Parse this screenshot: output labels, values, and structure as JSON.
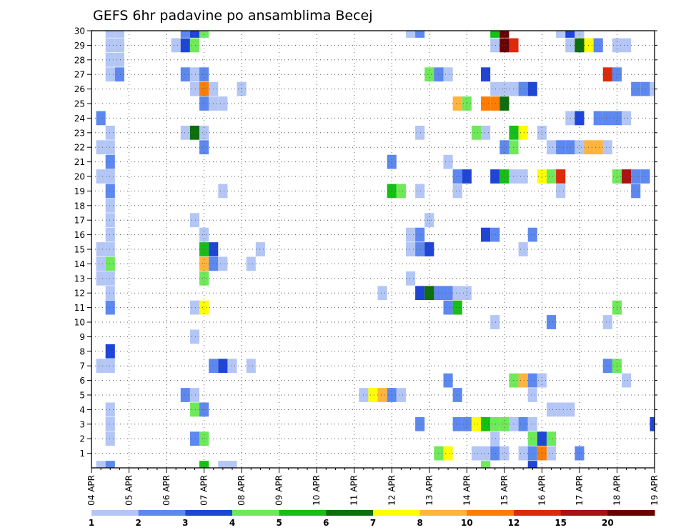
{
  "chart_data": {
    "type": "heatmap",
    "title": "GEFS 6hr padavine po ansamblima Becej",
    "xlabel": "",
    "ylabel": "",
    "x_ticks": [
      "04 APR",
      "05 APR",
      "06 APR",
      "07 APR",
      "08 APR",
      "09 APR",
      "10 APR",
      "11 APR",
      "12 APR",
      "13 APR",
      "14 APR",
      "15 APR",
      "16 APR",
      "17 APR",
      "18 APR",
      "19 APR"
    ],
    "y_ticks": [
      "1",
      "2",
      "3",
      "4",
      "5",
      "6",
      "7",
      "8",
      "9",
      "10",
      "11",
      "12",
      "13",
      "14",
      "15",
      "16",
      "17",
      "18",
      "19",
      "20",
      "21",
      "22",
      "23",
      "24",
      "25",
      "26",
      "27",
      "28",
      "29",
      "30"
    ],
    "xlim": [
      0,
      15
    ],
    "ylim": [
      0,
      30
    ],
    "grid": true,
    "colorbar": {
      "position": "bottom",
      "labels": [
        "1",
        "2",
        "3",
        "4",
        "5",
        "6",
        "7",
        "8",
        "10",
        "12",
        "15",
        "20"
      ],
      "colors": [
        "#b3c6f5",
        "#5d88ef",
        "#1f45d6",
        "#6fe95a",
        "#16bf16",
        "#0e6e0e",
        "#ffff00",
        "#ffb43c",
        "#ff7d00",
        "#dc2a0a",
        "#a81414",
        "#6b0000"
      ]
    },
    "cells_note_units": "x = days since 04 APR (6-hour steps), y = ensemble member, v = precipitation class index",
    "cells": [
      {
        "x": 0.5,
        "y": 30,
        "v": 1
      },
      {
        "x": 0.75,
        "y": 30,
        "v": 1
      },
      {
        "x": 2.5,
        "y": 30,
        "v": 2
      },
      {
        "x": 2.75,
        "y": 30,
        "v": 3
      },
      {
        "x": 3.0,
        "y": 30,
        "v": 4
      },
      {
        "x": 8.5,
        "y": 30,
        "v": 1
      },
      {
        "x": 8.75,
        "y": 30,
        "v": 2
      },
      {
        "x": 10.75,
        "y": 30,
        "v": 5
      },
      {
        "x": 11.0,
        "y": 30,
        "v": 12
      },
      {
        "x": 12.5,
        "y": 30,
        "v": 1
      },
      {
        "x": 12.75,
        "y": 30,
        "v": 3
      },
      {
        "x": 13.0,
        "y": 30,
        "v": 1
      },
      {
        "x": 0.5,
        "y": 29,
        "v": 1
      },
      {
        "x": 0.75,
        "y": 29,
        "v": 1
      },
      {
        "x": 2.25,
        "y": 29,
        "v": 1
      },
      {
        "x": 2.5,
        "y": 29,
        "v": 3
      },
      {
        "x": 2.75,
        "y": 29,
        "v": 4
      },
      {
        "x": 10.75,
        "y": 29,
        "v": 1
      },
      {
        "x": 11.0,
        "y": 29,
        "v": 12
      },
      {
        "x": 11.25,
        "y": 29,
        "v": 10
      },
      {
        "x": 12.75,
        "y": 29,
        "v": 1
      },
      {
        "x": 13.0,
        "y": 29,
        "v": 6
      },
      {
        "x": 13.25,
        "y": 29,
        "v": 7
      },
      {
        "x": 13.5,
        "y": 29,
        "v": 2
      },
      {
        "x": 14.0,
        "y": 29,
        "v": 1
      },
      {
        "x": 14.25,
        "y": 29,
        "v": 1
      },
      {
        "x": 0.5,
        "y": 28,
        "v": 1
      },
      {
        "x": 0.75,
        "y": 28,
        "v": 1
      },
      {
        "x": 0.5,
        "y": 27,
        "v": 1
      },
      {
        "x": 0.75,
        "y": 27,
        "v": 2
      },
      {
        "x": 2.5,
        "y": 27,
        "v": 2
      },
      {
        "x": 2.75,
        "y": 27,
        "v": 1
      },
      {
        "x": 3.0,
        "y": 27,
        "v": 2
      },
      {
        "x": 9.0,
        "y": 27,
        "v": 4
      },
      {
        "x": 9.25,
        "y": 27,
        "v": 2
      },
      {
        "x": 9.5,
        "y": 27,
        "v": 1
      },
      {
        "x": 10.5,
        "y": 27,
        "v": 3
      },
      {
        "x": 13.75,
        "y": 27,
        "v": 10
      },
      {
        "x": 14.0,
        "y": 27,
        "v": 2
      },
      {
        "x": 2.75,
        "y": 26,
        "v": 1
      },
      {
        "x": 3.0,
        "y": 26,
        "v": 9
      },
      {
        "x": 3.25,
        "y": 26,
        "v": 1
      },
      {
        "x": 4.0,
        "y": 26,
        "v": 1
      },
      {
        "x": 10.75,
        "y": 26,
        "v": 1
      },
      {
        "x": 11.0,
        "y": 26,
        "v": 1
      },
      {
        "x": 11.25,
        "y": 26,
        "v": 1
      },
      {
        "x": 11.5,
        "y": 26,
        "v": 2
      },
      {
        "x": 11.75,
        "y": 26,
        "v": 3
      },
      {
        "x": 14.5,
        "y": 26,
        "v": 2
      },
      {
        "x": 14.75,
        "y": 26,
        "v": 2
      },
      {
        "x": 15.0,
        "y": 26,
        "v": 1
      },
      {
        "x": 15.25,
        "y": 26,
        "v": 6
      },
      {
        "x": 3.0,
        "y": 25,
        "v": 2
      },
      {
        "x": 3.25,
        "y": 25,
        "v": 1
      },
      {
        "x": 3.5,
        "y": 25,
        "v": 1
      },
      {
        "x": 9.75,
        "y": 25,
        "v": 8
      },
      {
        "x": 10.0,
        "y": 25,
        "v": 4
      },
      {
        "x": 10.5,
        "y": 25,
        "v": 9
      },
      {
        "x": 10.75,
        "y": 25,
        "v": 9
      },
      {
        "x": 11.0,
        "y": 25,
        "v": 6
      },
      {
        "x": 0.25,
        "y": 24,
        "v": 2
      },
      {
        "x": 12.75,
        "y": 24,
        "v": 1
      },
      {
        "x": 13.0,
        "y": 24,
        "v": 3
      },
      {
        "x": 13.5,
        "y": 24,
        "v": 2
      },
      {
        "x": 13.75,
        "y": 24,
        "v": 2
      },
      {
        "x": 14.0,
        "y": 24,
        "v": 2
      },
      {
        "x": 14.25,
        "y": 24,
        "v": 1
      },
      {
        "x": 0.5,
        "y": 23,
        "v": 1
      },
      {
        "x": 2.5,
        "y": 23,
        "v": 1
      },
      {
        "x": 2.75,
        "y": 23,
        "v": 6
      },
      {
        "x": 3.0,
        "y": 23,
        "v": 1
      },
      {
        "x": 8.75,
        "y": 23,
        "v": 1
      },
      {
        "x": 10.25,
        "y": 23,
        "v": 4
      },
      {
        "x": 10.5,
        "y": 23,
        "v": 1
      },
      {
        "x": 11.25,
        "y": 23,
        "v": 5
      },
      {
        "x": 11.5,
        "y": 23,
        "v": 7
      },
      {
        "x": 12.0,
        "y": 23,
        "v": 1
      },
      {
        "x": 0.25,
        "y": 22,
        "v": 1
      },
      {
        "x": 0.5,
        "y": 22,
        "v": 1
      },
      {
        "x": 3.0,
        "y": 22,
        "v": 2
      },
      {
        "x": 11.0,
        "y": 22,
        "v": 2
      },
      {
        "x": 11.25,
        "y": 22,
        "v": 4
      },
      {
        "x": 12.25,
        "y": 22,
        "v": 1
      },
      {
        "x": 12.5,
        "y": 22,
        "v": 2
      },
      {
        "x": 12.75,
        "y": 22,
        "v": 2
      },
      {
        "x": 13.0,
        "y": 22,
        "v": 1
      },
      {
        "x": 13.25,
        "y": 22,
        "v": 8
      },
      {
        "x": 13.5,
        "y": 22,
        "v": 8
      },
      {
        "x": 13.75,
        "y": 22,
        "v": 1
      },
      {
        "x": 0.5,
        "y": 21,
        "v": 2
      },
      {
        "x": 8.0,
        "y": 21,
        "v": 2
      },
      {
        "x": 9.5,
        "y": 21,
        "v": 1
      },
      {
        "x": 0.25,
        "y": 20,
        "v": 1
      },
      {
        "x": 0.5,
        "y": 20,
        "v": 1
      },
      {
        "x": 9.75,
        "y": 20,
        "v": 2
      },
      {
        "x": 10.0,
        "y": 20,
        "v": 3
      },
      {
        "x": 10.75,
        "y": 20,
        "v": 3
      },
      {
        "x": 11.0,
        "y": 20,
        "v": 5
      },
      {
        "x": 11.25,
        "y": 20,
        "v": 1
      },
      {
        "x": 11.5,
        "y": 20,
        "v": 1
      },
      {
        "x": 12.0,
        "y": 20,
        "v": 7
      },
      {
        "x": 12.25,
        "y": 20,
        "v": 4
      },
      {
        "x": 12.5,
        "y": 20,
        "v": 10
      },
      {
        "x": 14.0,
        "y": 20,
        "v": 4
      },
      {
        "x": 14.25,
        "y": 20,
        "v": 11
      },
      {
        "x": 14.5,
        "y": 20,
        "v": 2
      },
      {
        "x": 14.75,
        "y": 20,
        "v": 2
      },
      {
        "x": 0.5,
        "y": 19,
        "v": 2
      },
      {
        "x": 3.5,
        "y": 19,
        "v": 1
      },
      {
        "x": 8.0,
        "y": 19,
        "v": 5
      },
      {
        "x": 8.25,
        "y": 19,
        "v": 4
      },
      {
        "x": 8.75,
        "y": 19,
        "v": 1
      },
      {
        "x": 9.75,
        "y": 19,
        "v": 1
      },
      {
        "x": 12.5,
        "y": 19,
        "v": 1
      },
      {
        "x": 14.5,
        "y": 19,
        "v": 2
      },
      {
        "x": 0.5,
        "y": 18,
        "v": 1
      },
      {
        "x": 0.5,
        "y": 17,
        "v": 1
      },
      {
        "x": 2.75,
        "y": 17,
        "v": 1
      },
      {
        "x": 9.0,
        "y": 17,
        "v": 1
      },
      {
        "x": 0.5,
        "y": 16,
        "v": 1
      },
      {
        "x": 3.0,
        "y": 16,
        "v": 1
      },
      {
        "x": 8.5,
        "y": 16,
        "v": 1
      },
      {
        "x": 8.75,
        "y": 16,
        "v": 2
      },
      {
        "x": 10.5,
        "y": 16,
        "v": 3
      },
      {
        "x": 10.75,
        "y": 16,
        "v": 2
      },
      {
        "x": 11.75,
        "y": 16,
        "v": 2
      },
      {
        "x": 0.25,
        "y": 15,
        "v": 1
      },
      {
        "x": 0.5,
        "y": 15,
        "v": 1
      },
      {
        "x": 3.0,
        "y": 15,
        "v": 5
      },
      {
        "x": 3.25,
        "y": 15,
        "v": 3
      },
      {
        "x": 4.5,
        "y": 15,
        "v": 1
      },
      {
        "x": 8.5,
        "y": 15,
        "v": 1
      },
      {
        "x": 8.75,
        "y": 15,
        "v": 2
      },
      {
        "x": 9.0,
        "y": 15,
        "v": 3
      },
      {
        "x": 11.5,
        "y": 15,
        "v": 1
      },
      {
        "x": 0.25,
        "y": 14,
        "v": 1
      },
      {
        "x": 0.5,
        "y": 14,
        "v": 4
      },
      {
        "x": 3.0,
        "y": 14,
        "v": 8
      },
      {
        "x": 3.25,
        "y": 14,
        "v": 2
      },
      {
        "x": 3.5,
        "y": 14,
        "v": 1
      },
      {
        "x": 4.25,
        "y": 14,
        "v": 1
      },
      {
        "x": 0.25,
        "y": 13,
        "v": 1
      },
      {
        "x": 0.5,
        "y": 13,
        "v": 1
      },
      {
        "x": 3.0,
        "y": 13,
        "v": 4
      },
      {
        "x": 8.5,
        "y": 13,
        "v": 1
      },
      {
        "x": 0.5,
        "y": 12,
        "v": 1
      },
      {
        "x": 7.75,
        "y": 12,
        "v": 1
      },
      {
        "x": 8.75,
        "y": 12,
        "v": 3
      },
      {
        "x": 9.0,
        "y": 12,
        "v": 6
      },
      {
        "x": 9.25,
        "y": 12,
        "v": 2
      },
      {
        "x": 9.5,
        "y": 12,
        "v": 2
      },
      {
        "x": 9.75,
        "y": 12,
        "v": 1
      },
      {
        "x": 10.0,
        "y": 12,
        "v": 1
      },
      {
        "x": 0.5,
        "y": 11,
        "v": 2
      },
      {
        "x": 2.75,
        "y": 11,
        "v": 1
      },
      {
        "x": 3.0,
        "y": 11,
        "v": 7
      },
      {
        "x": 9.5,
        "y": 11,
        "v": 2
      },
      {
        "x": 9.75,
        "y": 11,
        "v": 5
      },
      {
        "x": 14.0,
        "y": 11,
        "v": 4
      },
      {
        "x": 10.75,
        "y": 10,
        "v": 1
      },
      {
        "x": 12.25,
        "y": 10,
        "v": 2
      },
      {
        "x": 13.75,
        "y": 10,
        "v": 1
      },
      {
        "x": 2.75,
        "y": 9,
        "v": 1
      },
      {
        "x": 0.5,
        "y": 8,
        "v": 3
      },
      {
        "x": 0.25,
        "y": 7,
        "v": 1
      },
      {
        "x": 0.5,
        "y": 7,
        "v": 1
      },
      {
        "x": 3.25,
        "y": 7,
        "v": 2
      },
      {
        "x": 3.5,
        "y": 7,
        "v": 3
      },
      {
        "x": 3.75,
        "y": 7,
        "v": 1
      },
      {
        "x": 4.25,
        "y": 7,
        "v": 1
      },
      {
        "x": 13.75,
        "y": 7,
        "v": 2
      },
      {
        "x": 14.0,
        "y": 7,
        "v": 4
      },
      {
        "x": 9.5,
        "y": 6,
        "v": 2
      },
      {
        "x": 11.25,
        "y": 6,
        "v": 4
      },
      {
        "x": 11.5,
        "y": 6,
        "v": 8
      },
      {
        "x": 11.75,
        "y": 6,
        "v": 2
      },
      {
        "x": 12.0,
        "y": 6,
        "v": 1
      },
      {
        "x": 14.25,
        "y": 6,
        "v": 1
      },
      {
        "x": 2.5,
        "y": 5,
        "v": 2
      },
      {
        "x": 2.75,
        "y": 5,
        "v": 1
      },
      {
        "x": 7.25,
        "y": 5,
        "v": 1
      },
      {
        "x": 7.5,
        "y": 5,
        "v": 7
      },
      {
        "x": 7.75,
        "y": 5,
        "v": 8
      },
      {
        "x": 8.0,
        "y": 5,
        "v": 2
      },
      {
        "x": 8.25,
        "y": 5,
        "v": 1
      },
      {
        "x": 9.75,
        "y": 5,
        "v": 2
      },
      {
        "x": 11.75,
        "y": 5,
        "v": 1
      },
      {
        "x": 0.5,
        "y": 4,
        "v": 1
      },
      {
        "x": 2.75,
        "y": 4,
        "v": 4
      },
      {
        "x": 3.0,
        "y": 4,
        "v": 2
      },
      {
        "x": 12.25,
        "y": 4,
        "v": 1
      },
      {
        "x": 12.5,
        "y": 4,
        "v": 1
      },
      {
        "x": 12.75,
        "y": 4,
        "v": 1
      },
      {
        "x": 0.5,
        "y": 3,
        "v": 1
      },
      {
        "x": 8.75,
        "y": 3,
        "v": 2
      },
      {
        "x": 9.75,
        "y": 3,
        "v": 2
      },
      {
        "x": 10.0,
        "y": 3,
        "v": 2
      },
      {
        "x": 10.25,
        "y": 3,
        "v": 7
      },
      {
        "x": 10.5,
        "y": 3,
        "v": 5
      },
      {
        "x": 10.75,
        "y": 3,
        "v": 4
      },
      {
        "x": 11.0,
        "y": 3,
        "v": 4
      },
      {
        "x": 11.25,
        "y": 3,
        "v": 1
      },
      {
        "x": 11.5,
        "y": 3,
        "v": 2
      },
      {
        "x": 11.75,
        "y": 3,
        "v": 1
      },
      {
        "x": 15.0,
        "y": 3,
        "v": 3
      },
      {
        "x": 0.5,
        "y": 2,
        "v": 1
      },
      {
        "x": 2.75,
        "y": 2,
        "v": 2
      },
      {
        "x": 3.0,
        "y": 2,
        "v": 4
      },
      {
        "x": 10.75,
        "y": 2,
        "v": 1
      },
      {
        "x": 11.75,
        "y": 2,
        "v": 4
      },
      {
        "x": 12.0,
        "y": 2,
        "v": 3
      },
      {
        "x": 12.25,
        "y": 2,
        "v": 4
      },
      {
        "x": 9.25,
        "y": 1,
        "v": 4
      },
      {
        "x": 9.5,
        "y": 1,
        "v": 7
      },
      {
        "x": 10.25,
        "y": 1,
        "v": 1
      },
      {
        "x": 10.5,
        "y": 1,
        "v": 1
      },
      {
        "x": 10.75,
        "y": 1,
        "v": 2
      },
      {
        "x": 11.0,
        "y": 1,
        "v": 1
      },
      {
        "x": 11.5,
        "y": 1,
        "v": 1
      },
      {
        "x": 11.75,
        "y": 1,
        "v": 2
      },
      {
        "x": 12.0,
        "y": 1,
        "v": 9
      },
      {
        "x": 12.25,
        "y": 1,
        "v": 1
      },
      {
        "x": 13.0,
        "y": 1,
        "v": 2
      },
      {
        "x": 0.25,
        "y": 0,
        "v": 1
      },
      {
        "x": 0.5,
        "y": 0,
        "v": 2
      },
      {
        "x": 3.0,
        "y": 0,
        "v": 5
      },
      {
        "x": 3.5,
        "y": 0,
        "v": 1
      },
      {
        "x": 3.75,
        "y": 0,
        "v": 1
      },
      {
        "x": 10.5,
        "y": 0,
        "v": 4
      },
      {
        "x": 11.75,
        "y": 0,
        "v": 3
      }
    ]
  }
}
